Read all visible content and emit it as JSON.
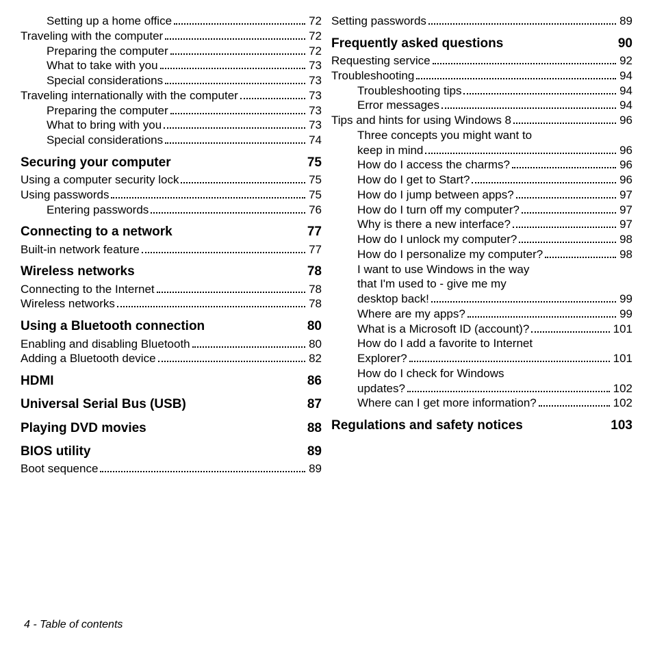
{
  "footer": "4 - Table of contents",
  "left": [
    {
      "type": "item",
      "indent": 1,
      "label": "Setting up a home office",
      "page": "72"
    },
    {
      "type": "item",
      "indent": 0,
      "label": "Traveling with the computer",
      "page": "72"
    },
    {
      "type": "item",
      "indent": 1,
      "label": "Preparing the computer",
      "page": "72"
    },
    {
      "type": "item",
      "indent": 1,
      "label": "What to take with you",
      "page": "73"
    },
    {
      "type": "item",
      "indent": 1,
      "label": "Special considerations",
      "page": "73"
    },
    {
      "type": "item",
      "indent": 0,
      "label": "Traveling internationally with the computer",
      "page": "73"
    },
    {
      "type": "item",
      "indent": 1,
      "label": "Preparing the computer",
      "page": "73"
    },
    {
      "type": "item",
      "indent": 1,
      "label": "What to bring with you",
      "page": "73"
    },
    {
      "type": "item",
      "indent": 1,
      "label": "Special considerations",
      "page": "74"
    },
    {
      "type": "heading",
      "label": "Securing your computer",
      "page": "75"
    },
    {
      "type": "item",
      "indent": 0,
      "label": "Using a computer security lock",
      "page": "75"
    },
    {
      "type": "item",
      "indent": 0,
      "label": "Using passwords",
      "page": "75"
    },
    {
      "type": "item",
      "indent": 1,
      "label": "Entering passwords",
      "page": "76"
    },
    {
      "type": "heading",
      "label": "Connecting to a network",
      "page": "77"
    },
    {
      "type": "item",
      "indent": 0,
      "label": "Built-in network feature",
      "page": "77"
    },
    {
      "type": "heading",
      "label": "Wireless networks",
      "page": "78"
    },
    {
      "type": "item",
      "indent": 0,
      "label": "Connecting to the Internet",
      "page": "78"
    },
    {
      "type": "item",
      "indent": 0,
      "label": "Wireless networks",
      "page": "78"
    },
    {
      "type": "heading",
      "label": "Using a Bluetooth connection",
      "page": "80"
    },
    {
      "type": "item",
      "indent": 0,
      "label": "Enabling and disabling Bluetooth",
      "page": "80"
    },
    {
      "type": "item",
      "indent": 0,
      "label": "Adding a Bluetooth device",
      "page": "82"
    },
    {
      "type": "heading",
      "label": "HDMI",
      "page": "86"
    },
    {
      "type": "heading",
      "label": "Universal Serial Bus (USB)",
      "page": "87"
    },
    {
      "type": "heading",
      "label": "Playing DVD movies",
      "page": "88"
    },
    {
      "type": "heading",
      "label": "BIOS utility",
      "page": "89"
    },
    {
      "type": "item",
      "indent": 0,
      "label": "Boot sequence",
      "page": "89"
    }
  ],
  "right": [
    {
      "type": "item",
      "indent": 0,
      "label": "Setting passwords",
      "page": "89"
    },
    {
      "type": "heading",
      "label": "Frequently asked questions",
      "page": "90"
    },
    {
      "type": "item",
      "indent": 0,
      "label": "Requesting service",
      "page": "92"
    },
    {
      "type": "item",
      "indent": 0,
      "label": "Troubleshooting",
      "page": "94"
    },
    {
      "type": "item",
      "indent": 1,
      "label": "Troubleshooting tips",
      "page": "94"
    },
    {
      "type": "item",
      "indent": 1,
      "label": "Error messages",
      "page": "94"
    },
    {
      "type": "item",
      "indent": 0,
      "label": "Tips and hints for using Windows 8",
      "page": "96"
    },
    {
      "type": "wrap",
      "indent": 1,
      "lines": [
        "Three concepts you might want to",
        "keep in mind"
      ],
      "page": "96"
    },
    {
      "type": "item",
      "indent": 1,
      "label": "How do I access the charms?",
      "page": "96"
    },
    {
      "type": "item",
      "indent": 1,
      "label": "How do I get to Start?",
      "page": "96"
    },
    {
      "type": "item",
      "indent": 1,
      "label": "How do I jump between apps?",
      "page": "97"
    },
    {
      "type": "item",
      "indent": 1,
      "label": "How do I turn off my computer?",
      "page": "97"
    },
    {
      "type": "item",
      "indent": 1,
      "label": "Why is there a new interface?",
      "page": "97"
    },
    {
      "type": "item",
      "indent": 1,
      "label": "How do I unlock my computer?",
      "page": "98"
    },
    {
      "type": "item",
      "indent": 1,
      "label": "How do I personalize my computer?",
      "page": "98"
    },
    {
      "type": "wrap",
      "indent": 1,
      "lines": [
        "I want to use Windows in the way",
        "that I'm used to - give me my",
        "desktop back!"
      ],
      "page": "99"
    },
    {
      "type": "item",
      "indent": 1,
      "label": "Where are my apps?",
      "page": "99"
    },
    {
      "type": "item",
      "indent": 1,
      "label": "What is a Microsoft ID (account)?",
      "page": "101"
    },
    {
      "type": "wrap",
      "indent": 1,
      "lines": [
        "How do I add a favorite to Internet",
        "Explorer?"
      ],
      "page": "101"
    },
    {
      "type": "wrap",
      "indent": 1,
      "lines": [
        "How do I check for Windows",
        "updates?"
      ],
      "page": "102"
    },
    {
      "type": "item",
      "indent": 1,
      "label": "Where can I get more information?",
      "page": "102"
    },
    {
      "type": "heading",
      "label": "Regulations and safety notices",
      "page": "103"
    }
  ]
}
